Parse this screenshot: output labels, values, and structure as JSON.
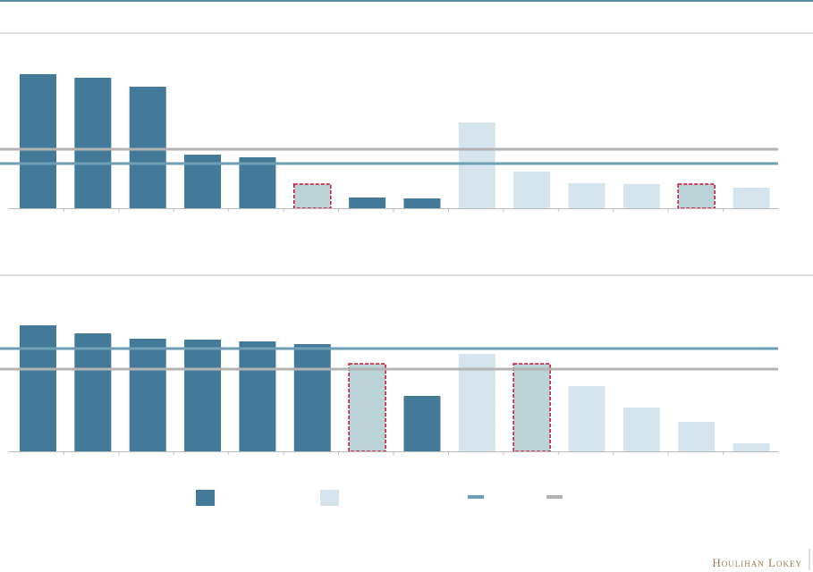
{
  "chart_data": [
    {
      "type": "bar",
      "categories": [
        null,
        null,
        null,
        null,
        null,
        null,
        null,
        null,
        null,
        null,
        null,
        null,
        null,
        null
      ],
      "values": [
        150,
        146,
        136,
        60,
        57,
        27,
        12,
        11,
        96,
        41,
        28,
        27,
        27,
        23
      ],
      "colors": [
        "#437a99",
        "#437a99",
        "#437a99",
        "#437a99",
        "#437a99",
        "#b9d3d6",
        "#437a99",
        "#437a99",
        "#d6e4ee",
        "#d6e4ee",
        "#d6e4ee",
        "#d6e4ee",
        "#b9d3d6",
        "#d6e4ee"
      ],
      "highlighted": [
        5,
        12
      ],
      "reference_lines": [
        {
          "value": 66,
          "color": "#b3b3b3"
        },
        {
          "value": 50,
          "color": "#6f9fb5"
        }
      ],
      "ylim": [
        0,
        160
      ]
    },
    {
      "type": "bar",
      "categories": [
        null,
        null,
        null,
        null,
        null,
        null,
        null,
        null,
        null,
        null,
        null,
        null,
        null,
        null
      ],
      "values": [
        141,
        132,
        126,
        125,
        123,
        120,
        98,
        62,
        109,
        98,
        73,
        49,
        33,
        9
      ],
      "colors": [
        "#437a99",
        "#437a99",
        "#437a99",
        "#437a99",
        "#437a99",
        "#437a99",
        "#b9d3d6",
        "#437a99",
        "#d6e4ee",
        "#b9d3d6",
        "#d6e4ee",
        "#d6e4ee",
        "#d6e4ee",
        "#d6e4ee"
      ],
      "highlighted": [
        6,
        9
      ],
      "reference_lines": [
        {
          "value": 115,
          "color": "#6f9fb5"
        },
        {
          "value": 92,
          "color": "#b3b3b3"
        }
      ],
      "ylim": [
        0,
        160
      ]
    }
  ],
  "legend": [
    {
      "color": "#437a99",
      "kind": "box"
    },
    {
      "color": "#d6e4ee",
      "kind": "box"
    },
    {
      "color": "#6f9fb5",
      "kind": "line"
    },
    {
      "color": "#b3b3b3",
      "kind": "line"
    }
  ],
  "footer": {
    "logo": "Houlihan Lokey"
  }
}
